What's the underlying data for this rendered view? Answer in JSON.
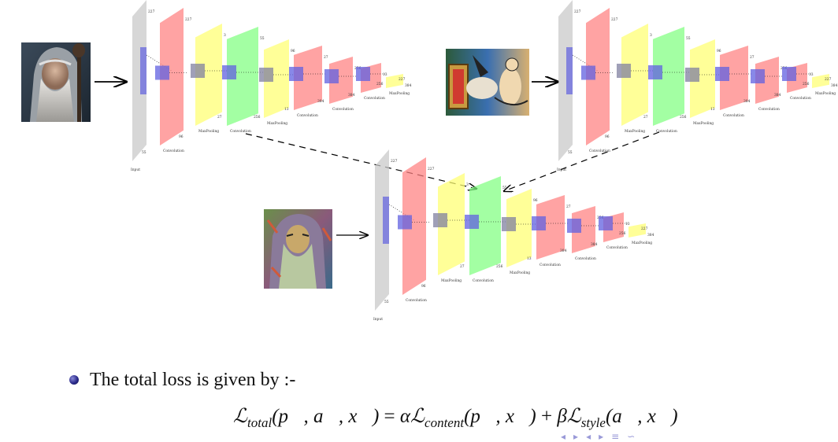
{
  "networks": {
    "layer_dims": [
      "227",
      "227",
      "3",
      "55",
      "96",
      "27",
      "256",
      "13",
      "384",
      "384",
      "256"
    ],
    "layer_types": {
      "input": "Input",
      "conv": "Convolution",
      "pool": "MaxPooling"
    }
  },
  "bullet": {
    "text": "The total loss is given by :-"
  },
  "equation": {
    "lhs_symbol": "ℒ",
    "lhs_sub": "total",
    "lhs_args": "(p⃗, a⃗, x⃗)",
    "equals": "=",
    "alpha": "α",
    "content_symbol": "ℒ",
    "content_sub": "content",
    "content_args": "(p⃗, x⃗)",
    "plus": "+",
    "beta": "β",
    "style_symbol": "ℒ",
    "style_sub": "style",
    "style_args": "(a⃗, x⃗)"
  },
  "colors": {
    "input_layer": "#c8c8c8",
    "conv_layer": "#ff8080",
    "pool_layer": "#ffff70",
    "conv_green": "#80ff80",
    "kernel": "#6060e0",
    "kernel_pool": "#8080a0",
    "bullet": "#2a2a8a"
  },
  "icons": {
    "nav": [
      "nav-prev-frame-icon",
      "nav-next-frame-icon",
      "nav-prev-section-icon",
      "nav-next-section-icon",
      "nav-equal-icon",
      "nav-search-icon"
    ]
  }
}
